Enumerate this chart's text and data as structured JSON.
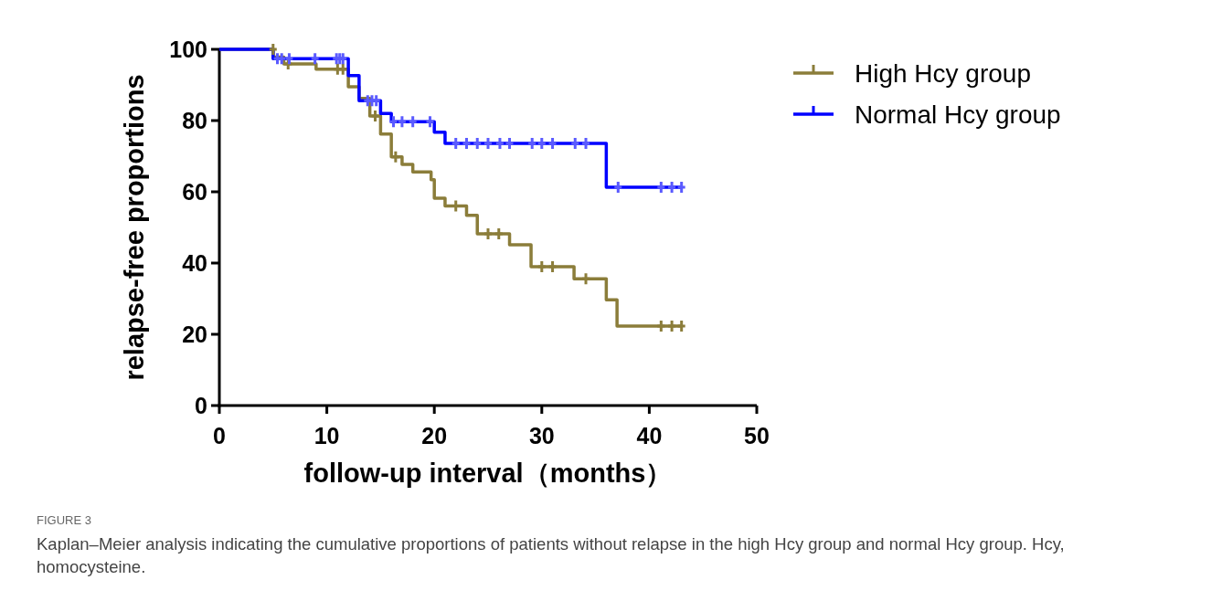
{
  "chart_data": {
    "type": "step",
    "xlabel": "follow-up interval（months）",
    "ylabel": "relapse-free proportions",
    "xlim": [
      0,
      50
    ],
    "ylim": [
      0,
      100
    ],
    "xticks": [
      0,
      10,
      20,
      30,
      40,
      50
    ],
    "yticks": [
      0,
      20,
      40,
      60,
      80,
      100
    ],
    "legend": "top right",
    "grid": false,
    "annotations": [
      "FIGURE 3",
      "Kaplan–Meier analysis indicating the cumulative proportions of patients without relapse in the high Hcy group and normal Hcy group. Hcy, homocysteine."
    ],
    "series": [
      {
        "name": "High Hcy group",
        "type": "step",
        "color": "#8b7d3a",
        "x": [
          0,
          5,
          6,
          9,
          12,
          13,
          14,
          15,
          16,
          17,
          18,
          19.7,
          20,
          21,
          23,
          24,
          27,
          29,
          33,
          36,
          37,
          43
        ],
        "values": [
          100,
          97.8,
          95.9,
          94.4,
          89.5,
          86.2,
          81.3,
          76.2,
          69.8,
          67.7,
          65.6,
          63.4,
          58.2,
          56.0,
          53.4,
          48.2,
          45.1,
          39.0,
          35.6,
          29.7,
          22.3,
          22.3
        ]
      },
      {
        "name": "Normal Hcy group",
        "type": "step",
        "color": "#0000ff",
        "x": [
          0,
          5,
          12,
          13,
          15,
          16,
          20,
          21,
          36,
          43
        ],
        "values": [
          100,
          97.4,
          92.6,
          85.6,
          82.0,
          79.7,
          76.7,
          73.6,
          61.3,
          61.3
        ]
      },
      {
        "type": "scatter",
        "marker": "cross",
        "color": "#8b7d3a",
        "x": [
          5,
          5.4,
          6.4,
          11,
          11.5,
          14.5,
          16.4,
          22,
          25,
          26,
          30,
          31,
          34.1,
          41.1,
          42.1,
          43
        ],
        "values": [
          100,
          null,
          95.9,
          94.4,
          94.4,
          81.3,
          69.8,
          56.0,
          48.2,
          48.2,
          39.0,
          39.0,
          35.6,
          22.3,
          22.3,
          22.3
        ]
      },
      {
        "type": "scatter",
        "marker": "cross",
        "color": "#5a5aff",
        "x": [
          5.4,
          5.8,
          6.5,
          8.9,
          10.9,
          11.2,
          11.5,
          13.8,
          14.2,
          14.6,
          16.2,
          17,
          18,
          19.6,
          22,
          23,
          24,
          25,
          26.1,
          27,
          29.1,
          30,
          31,
          33.1,
          34.1,
          37.1,
          41.1,
          42.1,
          43
        ],
        "values": [
          97.4,
          97.4,
          97.4,
          97.4,
          97.4,
          97.4,
          97.4,
          85.6,
          85.6,
          85.6,
          79.7,
          79.7,
          79.7,
          79.7,
          73.6,
          73.6,
          73.6,
          73.6,
          73.6,
          73.6,
          73.6,
          73.6,
          73.6,
          73.6,
          73.6,
          61.3,
          61.3,
          61.3,
          61.3
        ]
      }
    ]
  }
}
